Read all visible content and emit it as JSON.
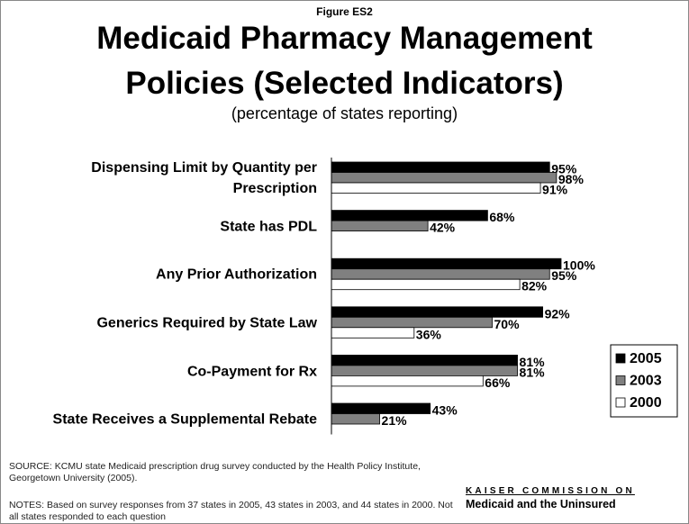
{
  "chart_data": {
    "type": "bar",
    "orientation": "horizontal",
    "figure_label": "Figure ES2",
    "title": "Medicaid Pharmacy Management Policies (Selected Indicators)",
    "subtitle": "(percentage of states reporting)",
    "categories": [
      "Dispensing Limit by Quantity per Prescription",
      "State has PDL",
      "Any Prior Authorization",
      "Generics Required by State Law",
      "Co-Payment for Rx",
      "State Receives a Supplemental Rebate"
    ],
    "series": [
      {
        "name": "2005",
        "color": "#000000",
        "values": [
          95,
          68,
          100,
          92,
          81,
          43
        ],
        "value_labels": [
          "95%",
          "68%",
          "100%",
          "92%",
          "81%",
          "43%"
        ]
      },
      {
        "name": "2003",
        "color": "#808080",
        "values": [
          98,
          42,
          95,
          70,
          81,
          21
        ],
        "value_labels": [
          "98%",
          "42%",
          "95%",
          "70%",
          "81%",
          "21%"
        ]
      },
      {
        "name": "2000",
        "color": "#ffffff",
        "values": [
          91,
          null,
          82,
          36,
          66,
          null
        ],
        "value_labels": [
          "91%",
          null,
          "82%",
          "36%",
          "66%",
          null
        ]
      }
    ],
    "xlim": [
      0,
      100
    ],
    "legend": "right",
    "source": "SOURCE: KCMU state Medicaid prescription drug survey conducted by the Health Policy Institute, Georgetown University (2005).",
    "notes": "NOTES: Based on survey responses from 37 states in 2005, 43 states in 2003, and 44 states in 2000.  Not all states responded to each question",
    "logo_top": "KAISER COMMISSION ON",
    "logo_bottom": "Medicaid and the Uninsured"
  }
}
